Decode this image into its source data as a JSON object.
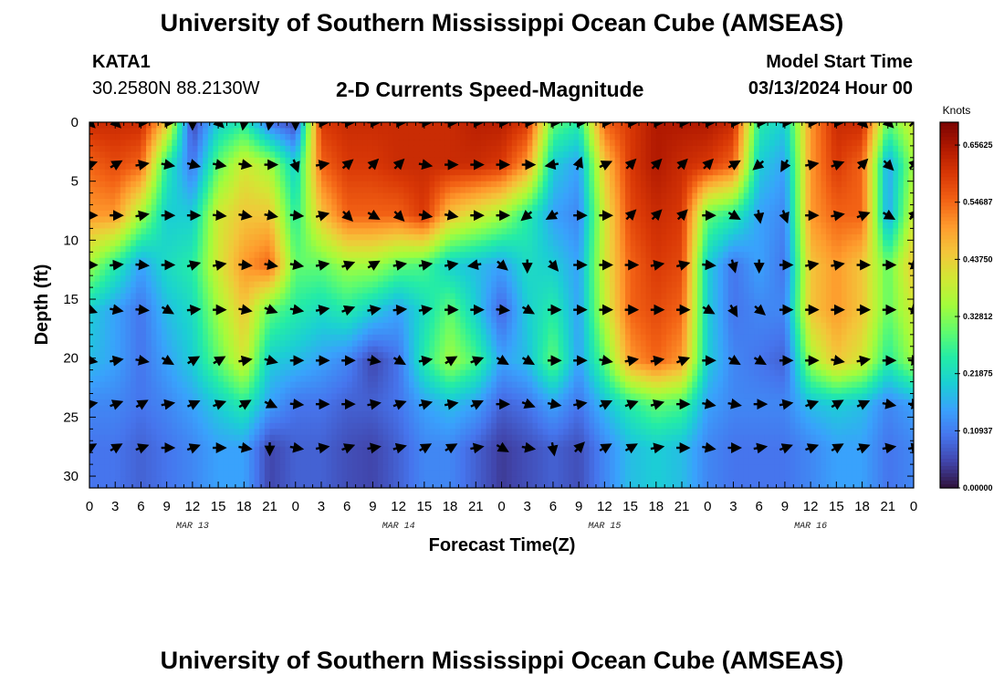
{
  "header": {
    "title": "University of Southern Mississippi Ocean Cube (AMSEAS)",
    "station": "KATA1",
    "coords": "30.2580N  88.2130W",
    "plot_title": "2-D Currents Speed-Magnitude",
    "model_label": "Model Start Time",
    "model_time": "03/13/2024 Hour 00"
  },
  "footer": {
    "title": "University of Southern Mississippi Ocean Cube (AMSEAS)"
  },
  "colors": {
    "scale": [
      "#30123b",
      "#4145ab",
      "#4675ed",
      "#39a2fc",
      "#1bcfd4",
      "#24eca6",
      "#61fc6c",
      "#a4fc3b",
      "#d1e834",
      "#f3c63a",
      "#fe9b2d",
      "#f36315",
      "#d93806",
      "#b11901",
      "#7a0403"
    ]
  },
  "chart_data": {
    "type": "heatmap",
    "title": "2-D Currents Speed-Magnitude",
    "xlabel": "Forecast Time(Z)",
    "ylabel": "Depth (ft)",
    "colorbar_label": "Knots",
    "xlim": [
      0,
      96
    ],
    "ylim": [
      0,
      31
    ],
    "x_ticks": [
      0,
      3,
      6,
      9,
      12,
      15,
      18,
      21,
      24,
      27,
      30,
      33,
      36,
      39,
      42,
      45,
      48,
      51,
      54,
      57,
      60,
      63,
      66,
      69,
      72,
      75,
      78,
      81,
      84,
      87,
      90,
      93,
      96
    ],
    "x_tick_labels": [
      "0",
      "3",
      "6",
      "9",
      "12",
      "15",
      "18",
      "21",
      "0",
      "3",
      "6",
      "9",
      "12",
      "15",
      "18",
      "21",
      "0",
      "3",
      "6",
      "9",
      "12",
      "15",
      "18",
      "21",
      "0",
      "3",
      "6",
      "9",
      "12",
      "15",
      "18",
      "21",
      "0"
    ],
    "y_ticks": [
      0,
      5,
      10,
      15,
      20,
      25,
      30
    ],
    "y_tick_labels": [
      "0",
      "5",
      "10",
      "15",
      "20",
      "25",
      "30"
    ],
    "date_labels": [
      {
        "x": 12,
        "label": "MAR 13"
      },
      {
        "x": 36,
        "label": "MAR 14"
      },
      {
        "x": 60,
        "label": "MAR 15"
      },
      {
        "x": 84,
        "label": "MAR 16"
      }
    ],
    "colorbar_range": [
      0.0,
      0.7
    ],
    "colorbar_ticks": [
      0.0,
      0.10937,
      0.21875,
      0.32812,
      0.4375,
      0.54687,
      0.65625
    ],
    "colorbar_tick_labels": [
      "0.00000",
      "0.10937",
      "0.21875",
      "0.32812",
      "0.43750",
      "0.54687",
      "0.65625"
    ],
    "depth_levels": [
      0,
      3.6,
      7.9,
      12.1,
      15.9,
      20.2,
      23.9,
      27.6
    ],
    "time_steps": [
      0,
      3,
      6,
      9,
      12,
      15,
      18,
      21,
      24,
      27,
      30,
      33,
      36,
      39,
      42,
      45,
      48,
      51,
      54,
      57,
      60,
      63,
      66,
      69,
      72,
      75,
      78,
      81,
      84,
      87,
      90,
      93,
      96
    ],
    "speed": [
      [
        0.62,
        0.62,
        0.62,
        0.45,
        0.05,
        0.2,
        0.25,
        0.1,
        0.05,
        0.6,
        0.62,
        0.62,
        0.62,
        0.62,
        0.62,
        0.64,
        0.64,
        0.6,
        0.3,
        0.25,
        0.55,
        0.6,
        0.65,
        0.65,
        0.65,
        0.62,
        0.25,
        0.2,
        0.5,
        0.62,
        0.62,
        0.3,
        0.4
      ],
      [
        0.55,
        0.58,
        0.55,
        0.25,
        0.1,
        0.3,
        0.4,
        0.35,
        0.2,
        0.55,
        0.6,
        0.6,
        0.62,
        0.62,
        0.62,
        0.62,
        0.6,
        0.5,
        0.2,
        0.15,
        0.45,
        0.6,
        0.65,
        0.62,
        0.6,
        0.55,
        0.2,
        0.15,
        0.5,
        0.6,
        0.55,
        0.15,
        0.35
      ],
      [
        0.5,
        0.5,
        0.35,
        0.2,
        0.2,
        0.4,
        0.45,
        0.45,
        0.25,
        0.45,
        0.55,
        0.55,
        0.55,
        0.6,
        0.45,
        0.4,
        0.35,
        0.25,
        0.15,
        0.12,
        0.4,
        0.58,
        0.62,
        0.6,
        0.3,
        0.25,
        0.15,
        0.12,
        0.5,
        0.55,
        0.55,
        0.15,
        0.4
      ],
      [
        0.35,
        0.25,
        0.15,
        0.22,
        0.25,
        0.4,
        0.5,
        0.55,
        0.3,
        0.3,
        0.35,
        0.35,
        0.3,
        0.28,
        0.2,
        0.18,
        0.15,
        0.22,
        0.2,
        0.15,
        0.4,
        0.55,
        0.6,
        0.58,
        0.2,
        0.1,
        0.15,
        0.1,
        0.45,
        0.5,
        0.45,
        0.3,
        0.45
      ],
      [
        0.2,
        0.15,
        0.1,
        0.18,
        0.22,
        0.35,
        0.45,
        0.3,
        0.25,
        0.22,
        0.25,
        0.2,
        0.15,
        0.22,
        0.3,
        0.2,
        0.08,
        0.2,
        0.25,
        0.15,
        0.38,
        0.55,
        0.58,
        0.55,
        0.2,
        0.1,
        0.12,
        0.12,
        0.45,
        0.5,
        0.45,
        0.3,
        0.4
      ],
      [
        0.18,
        0.15,
        0.1,
        0.15,
        0.2,
        0.3,
        0.4,
        0.2,
        0.18,
        0.15,
        0.12,
        0.05,
        0.1,
        0.25,
        0.35,
        0.28,
        0.15,
        0.18,
        0.3,
        0.15,
        0.3,
        0.5,
        0.55,
        0.5,
        0.2,
        0.12,
        0.1,
        0.08,
        0.35,
        0.45,
        0.4,
        0.25,
        0.35
      ],
      [
        0.12,
        0.12,
        0.1,
        0.12,
        0.15,
        0.2,
        0.25,
        0.15,
        0.1,
        0.1,
        0.08,
        0.08,
        0.1,
        0.15,
        0.18,
        0.15,
        0.08,
        0.1,
        0.15,
        0.1,
        0.18,
        0.25,
        0.3,
        0.28,
        0.15,
        0.12,
        0.12,
        0.12,
        0.18,
        0.2,
        0.18,
        0.12,
        0.15
      ],
      [
        0.1,
        0.1,
        0.08,
        0.1,
        0.12,
        0.15,
        0.15,
        0.05,
        0.08,
        0.08,
        0.06,
        0.05,
        0.08,
        0.12,
        0.12,
        0.08,
        0.04,
        0.06,
        0.08,
        0.06,
        0.12,
        0.18,
        0.2,
        0.18,
        0.12,
        0.1,
        0.1,
        0.1,
        0.12,
        0.15,
        0.15,
        0.1,
        0.12
      ]
    ],
    "direction_deg": [
      [
        135,
        135,
        90,
        90,
        180,
        135,
        190,
        190,
        180,
        90,
        90,
        90,
        90,
        90,
        90,
        90,
        90,
        90,
        90,
        90,
        90,
        90,
        90,
        90,
        90,
        90,
        90,
        90,
        90,
        90,
        135,
        135,
        45
      ],
      [
        70,
        60,
        80,
        100,
        105,
        100,
        100,
        90,
        160,
        80,
        50,
        45,
        45,
        100,
        90,
        90,
        90,
        90,
        260,
        20,
        65,
        45,
        45,
        45,
        45,
        60,
        230,
        210,
        80,
        70,
        45,
        135,
        45
      ],
      [
        90,
        90,
        80,
        90,
        90,
        95,
        100,
        100,
        95,
        75,
        135,
        120,
        135,
        100,
        100,
        90,
        90,
        230,
        240,
        90,
        90,
        45,
        45,
        45,
        90,
        120,
        170,
        160,
        90,
        80,
        70,
        120,
        45
      ],
      [
        90,
        85,
        95,
        90,
        75,
        80,
        95,
        100,
        100,
        80,
        70,
        60,
        80,
        80,
        80,
        260,
        130,
        180,
        140,
        90,
        90,
        90,
        80,
        75,
        95,
        165,
        180,
        90,
        80,
        80,
        90,
        90,
        110
      ],
      [
        110,
        100,
        95,
        120,
        85,
        90,
        100,
        110,
        100,
        80,
        70,
        80,
        85,
        80,
        90,
        90,
        95,
        120,
        90,
        90,
        90,
        90,
        90,
        90,
        120,
        150,
        130,
        90,
        90,
        90,
        90,
        90,
        105
      ],
      [
        100,
        80,
        100,
        120,
        60,
        60,
        80,
        105,
        90,
        90,
        90,
        100,
        120,
        80,
        60,
        70,
        120,
        120,
        90,
        90,
        100,
        80,
        80,
        70,
        90,
        120,
        120,
        90,
        90,
        100,
        80,
        90,
        95
      ],
      [
        80,
        70,
        60,
        80,
        65,
        70,
        60,
        115,
        95,
        90,
        90,
        80,
        70,
        75,
        80,
        65,
        90,
        110,
        100,
        80,
        65,
        70,
        75,
        90,
        100,
        100,
        90,
        80,
        70,
        60,
        65,
        100,
        95
      ],
      [
        60,
        60,
        70,
        90,
        70,
        90,
        100,
        180,
        100,
        80,
        70,
        80,
        75,
        60,
        60,
        80,
        120,
        100,
        170,
        45,
        60,
        60,
        80,
        90,
        100,
        90,
        80,
        70,
        70,
        60,
        70,
        80,
        80
      ]
    ]
  }
}
